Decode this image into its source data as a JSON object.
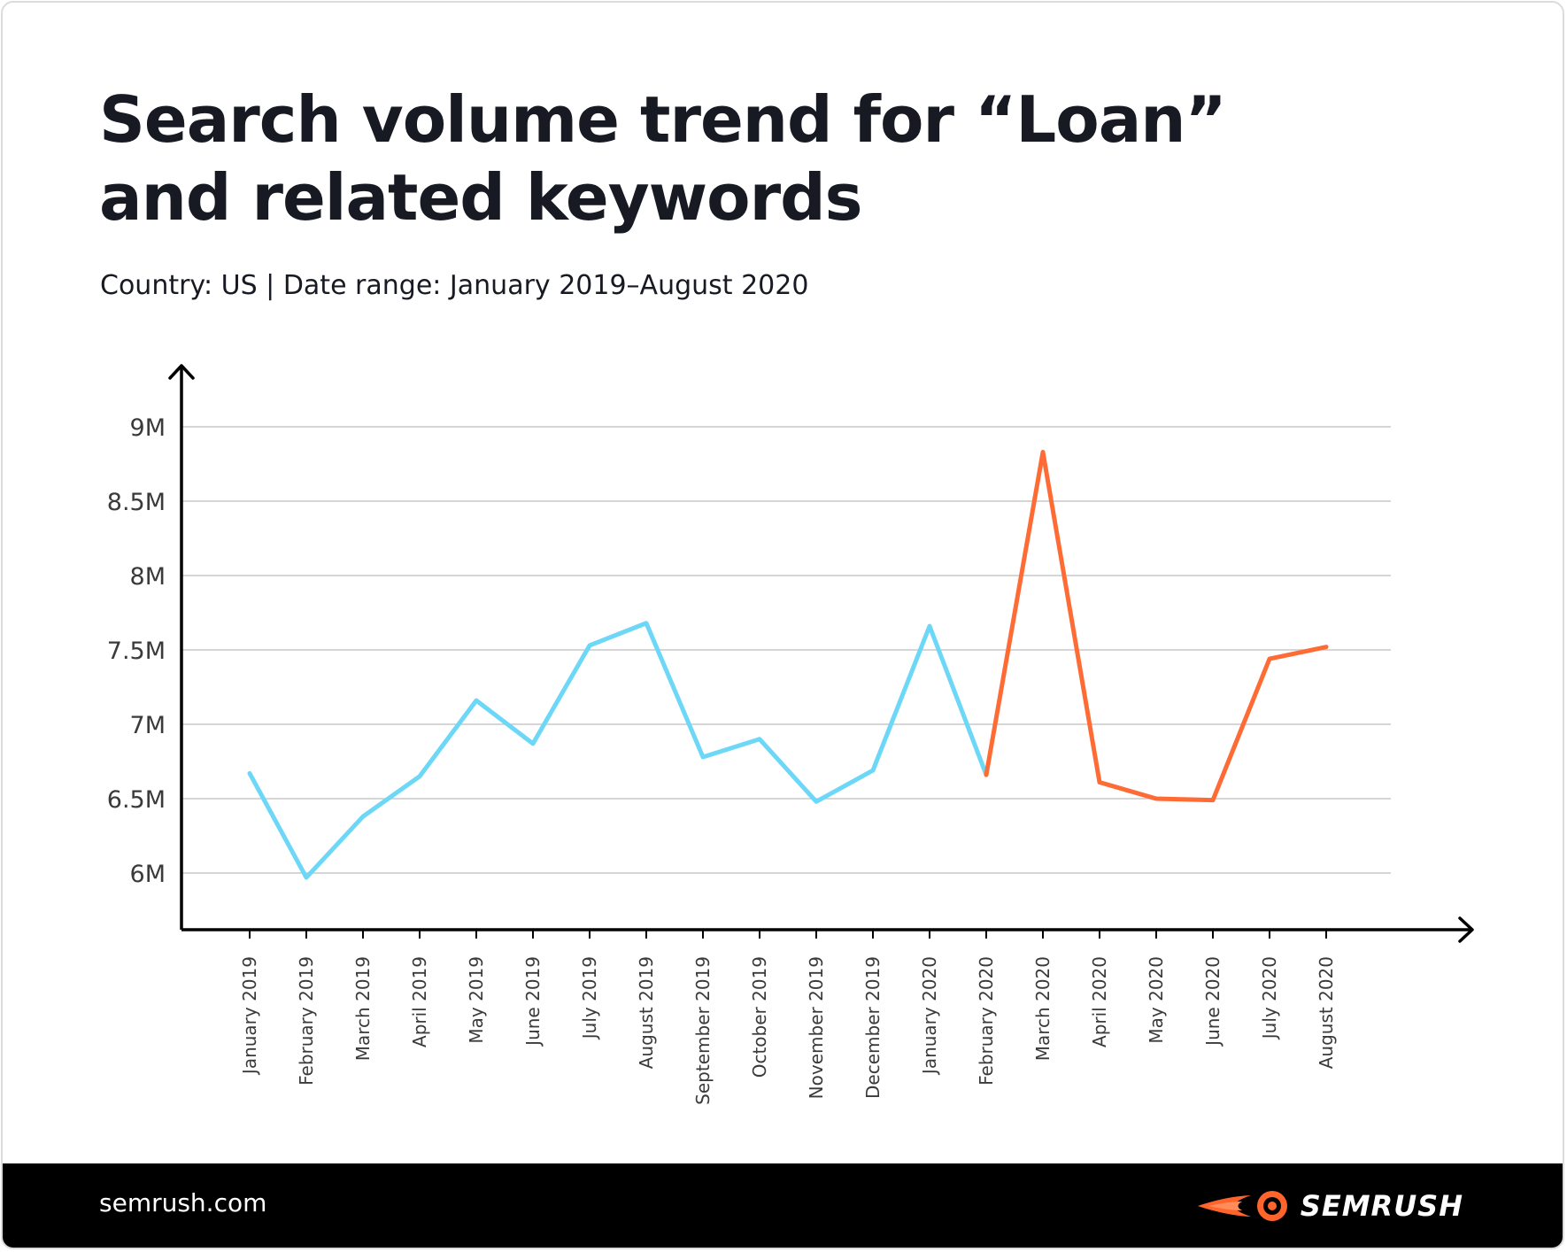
{
  "title_line1": "Search volume trend for “Loan”",
  "title_line2": "and related keywords",
  "subtitle": "Country: US | Date range: January 2019–August 2020",
  "footer": {
    "url": "semrush.com",
    "brand": "SEMRUSH",
    "logo_icon": "semrush-fire-icon"
  },
  "colors": {
    "before": "#6dd7f7",
    "after": "#ff6b35",
    "axis": "#000000",
    "grid": "#c9c9c9",
    "text": "#3a3a3a"
  },
  "chart_data": {
    "type": "line",
    "title": "Search volume trend for “Loan” and related keywords",
    "x": [
      "January 2019",
      "February 2019",
      "March 2019",
      "April 2019",
      "May 2019",
      "June 2019",
      "July 2019",
      "August 2019",
      "September 2019",
      "October 2019",
      "November 2019",
      "December 2019",
      "January 2020",
      "February 2020",
      "March 2020",
      "April 2020",
      "May 2020",
      "June 2020",
      "July 2020",
      "August 2020"
    ],
    "series": [
      {
        "values": [
          6.67,
          5.97,
          6.38,
          6.65,
          7.16,
          6.87,
          7.53,
          7.68,
          6.78,
          6.9,
          6.48,
          6.69,
          7.66,
          6.66,
          null,
          null,
          null,
          null,
          null,
          null
        ]
      },
      {
        "values": [
          null,
          null,
          null,
          null,
          null,
          null,
          null,
          null,
          null,
          null,
          null,
          null,
          null,
          6.66,
          8.83,
          6.61,
          6.5,
          6.49,
          7.44,
          7.52
        ]
      }
    ],
    "yticks": [
      6,
      6.5,
      7,
      7.5,
      8,
      8.5,
      9
    ],
    "ytick_labels": [
      "6M",
      "6.5M",
      "7M",
      "7.5M",
      "8M",
      "8.5M",
      "9M"
    ],
    "ylim": [
      5.63,
      9.41
    ],
    "ylabel": "",
    "xlabel": "",
    "grid": true,
    "legend": "none"
  }
}
